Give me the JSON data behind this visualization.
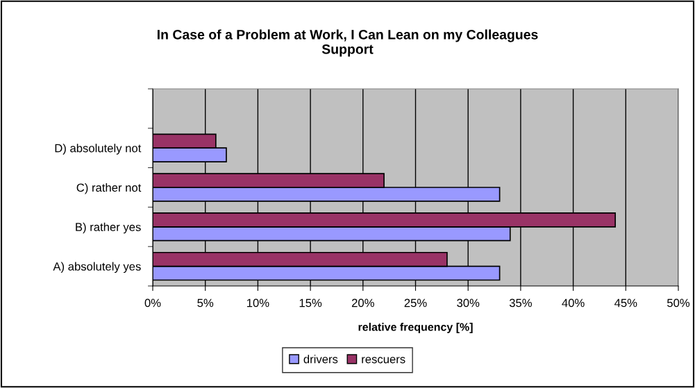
{
  "chart_data": {
    "type": "bar",
    "orientation": "horizontal",
    "title": "In Case of a Problem at Work, I Can Lean on my Colleagues\nSupport",
    "xlabel": "relative frequency [%]",
    "categories": [
      null,
      "D) absolutely not",
      "C) rather not",
      "B) rather yes",
      "A) absolutely yes"
    ],
    "series": [
      {
        "name": "drivers",
        "color": "#9999ff",
        "values": [
          null,
          7,
          33,
          34,
          33
        ]
      },
      {
        "name": "rescuers",
        "color": "#993366",
        "values": [
          null,
          6,
          22,
          44,
          28
        ]
      }
    ],
    "xlim": [
      0,
      50
    ],
    "xticks": [
      {
        "value": 0,
        "label": "0%"
      },
      {
        "value": 5,
        "label": "5%"
      },
      {
        "value": 10,
        "label": "10%"
      },
      {
        "value": 15,
        "label": "15%"
      },
      {
        "value": 20,
        "label": "20%"
      },
      {
        "value": 25,
        "label": "25%"
      },
      {
        "value": 30,
        "label": "30%"
      },
      {
        "value": 35,
        "label": "35%"
      },
      {
        "value": 40,
        "label": "40%"
      },
      {
        "value": 45,
        "label": "45%"
      },
      {
        "value": 50,
        "label": "50%"
      }
    ],
    "grid": "x",
    "legend": "bottom"
  }
}
